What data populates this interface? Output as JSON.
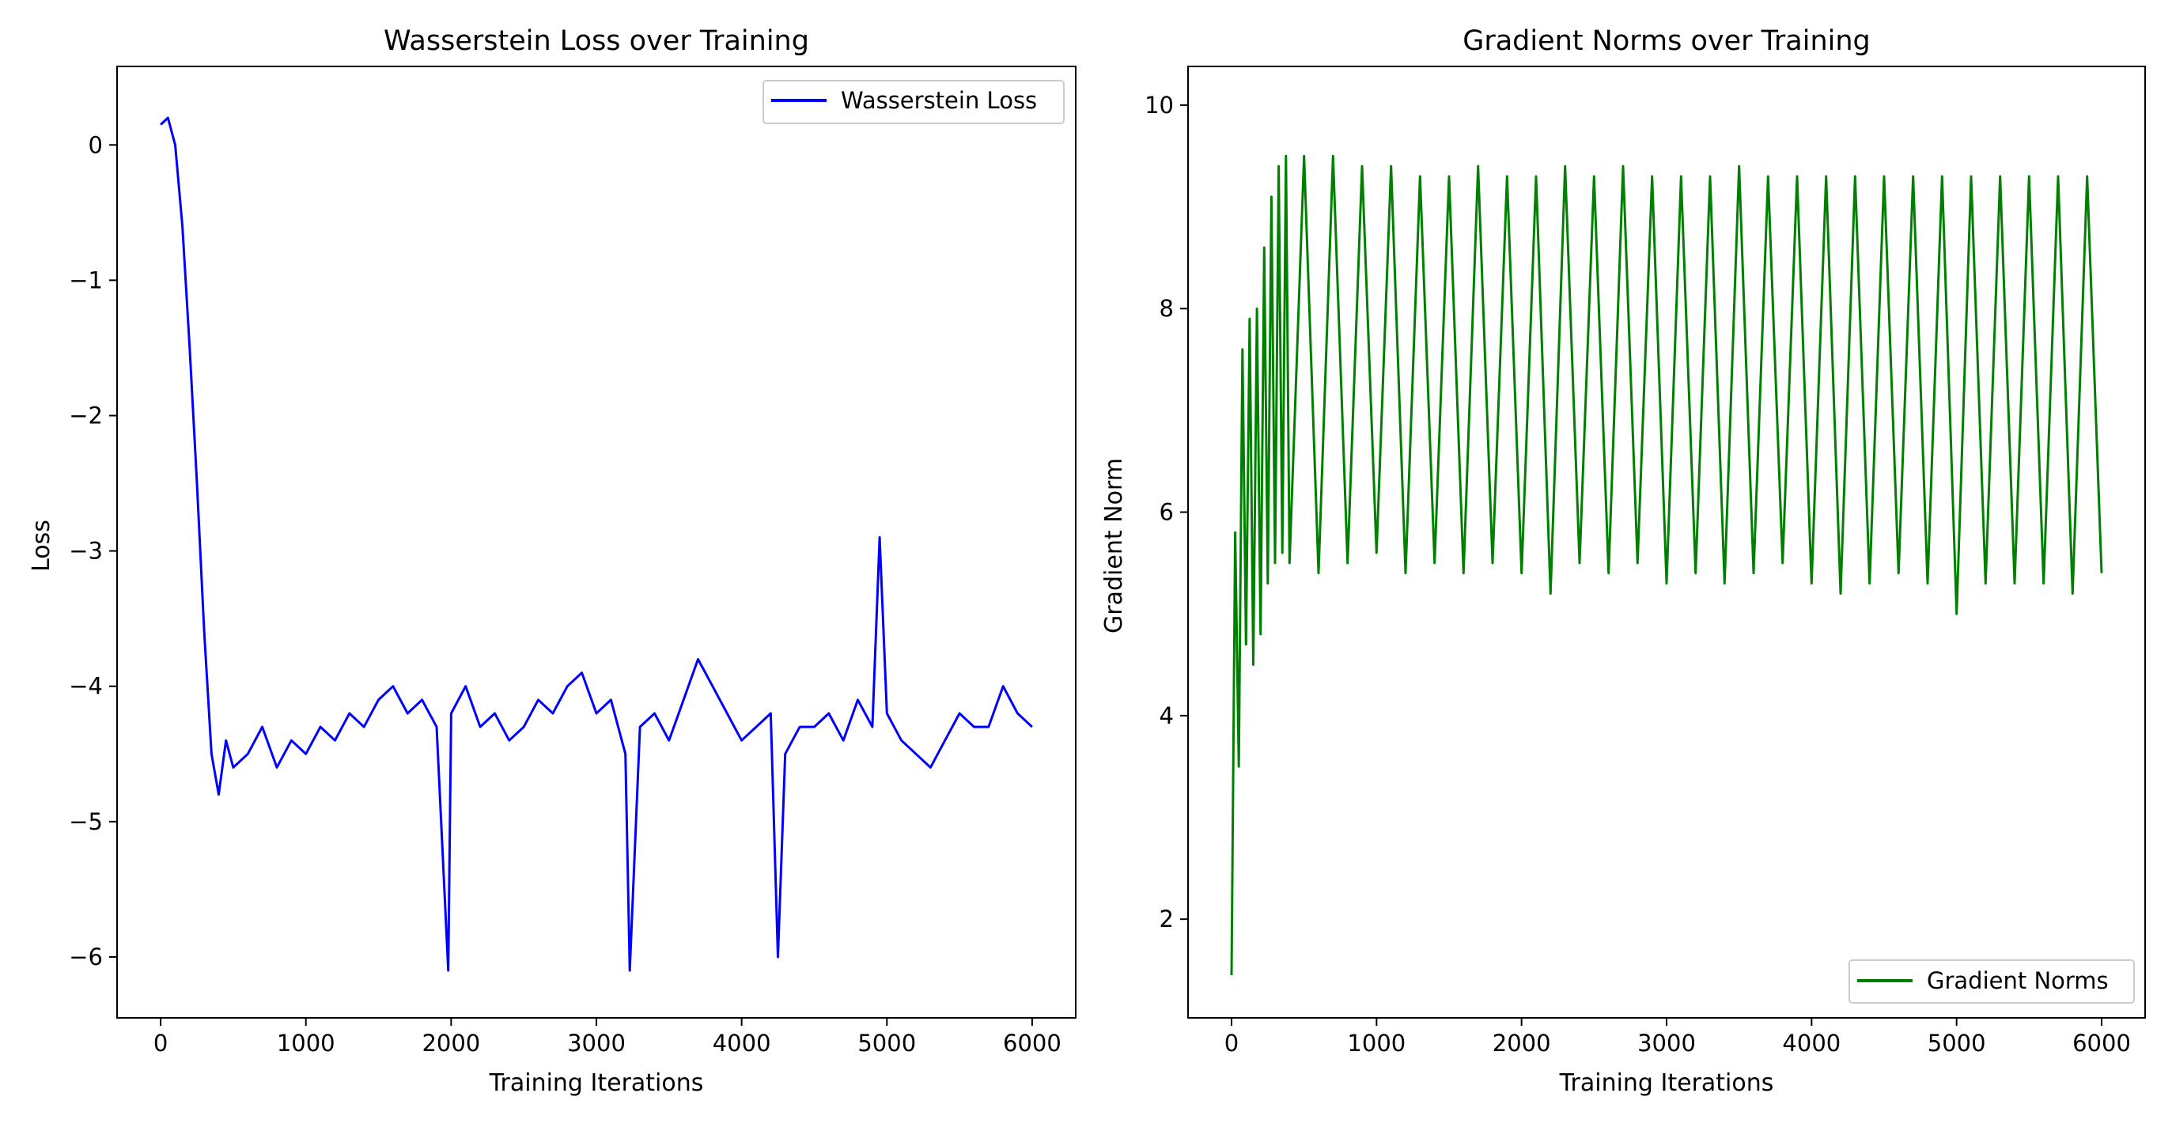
{
  "chart_data": [
    {
      "type": "line",
      "title": "Wasserstein Loss over Training",
      "xlabel": "Training Iterations",
      "ylabel": "Loss",
      "xlim": [
        -300,
        6300
      ],
      "ylim": [
        -6.45,
        0.58
      ],
      "xticks": [
        0,
        1000,
        2000,
        3000,
        4000,
        5000,
        6000
      ],
      "xtick_labels": [
        "0",
        "1000",
        "2000",
        "3000",
        "4000",
        "5000",
        "6000"
      ],
      "yticks": [
        0,
        -1,
        -2,
        -3,
        -4,
        -5,
        -6
      ],
      "ytick_labels": [
        "0",
        "−1",
        "−2",
        "−3",
        "−4",
        "−5",
        "−6"
      ],
      "grid": false,
      "legend_position": "upper right",
      "series": [
        {
          "name": "Wasserstein Loss",
          "color": "#0000ff",
          "x": [
            0,
            50,
            100,
            150,
            200,
            250,
            300,
            350,
            400,
            450,
            500,
            600,
            700,
            800,
            900,
            1000,
            1100,
            1200,
            1300,
            1400,
            1500,
            1600,
            1700,
            1800,
            1900,
            1980,
            2000,
            2100,
            2200,
            2300,
            2400,
            2500,
            2600,
            2700,
            2800,
            2900,
            3000,
            3100,
            3200,
            3230,
            3300,
            3400,
            3500,
            3600,
            3700,
            3800,
            3900,
            4000,
            4100,
            4200,
            4250,
            4300,
            4400,
            4500,
            4600,
            4700,
            4800,
            4900,
            4950,
            5000,
            5100,
            5200,
            5300,
            5400,
            5500,
            5600,
            5700,
            5800,
            5900,
            6000
          ],
          "values": [
            0.15,
            0.2,
            0.0,
            -0.6,
            -1.5,
            -2.5,
            -3.6,
            -4.5,
            -4.8,
            -4.4,
            -4.6,
            -4.5,
            -4.3,
            -4.6,
            -4.4,
            -4.5,
            -4.3,
            -4.4,
            -4.2,
            -4.3,
            -4.1,
            -4.0,
            -4.2,
            -4.1,
            -4.3,
            -6.1,
            -4.2,
            -4.0,
            -4.3,
            -4.2,
            -4.4,
            -4.3,
            -4.1,
            -4.2,
            -4.0,
            -3.9,
            -4.2,
            -4.1,
            -4.5,
            -6.1,
            -4.3,
            -4.2,
            -4.4,
            -4.1,
            -3.8,
            -4.0,
            -4.2,
            -4.4,
            -4.3,
            -4.2,
            -6.0,
            -4.5,
            -4.3,
            -4.3,
            -4.2,
            -4.4,
            -4.1,
            -4.3,
            -2.9,
            -4.2,
            -4.4,
            -4.5,
            -4.6,
            -4.4,
            -4.2,
            -4.3,
            -4.3,
            -4.0,
            -4.2,
            -4.3
          ]
        }
      ]
    },
    {
      "type": "line",
      "title": "Gradient Norms over Training",
      "xlabel": "Training Iterations",
      "ylabel": "Gradient Norm",
      "xlim": [
        -300,
        6300
      ],
      "ylim": [
        1.03,
        10.38
      ],
      "xticks": [
        0,
        1000,
        2000,
        3000,
        4000,
        5000,
        6000
      ],
      "xtick_labels": [
        "0",
        "1000",
        "2000",
        "3000",
        "4000",
        "5000",
        "6000"
      ],
      "yticks": [
        2,
        4,
        6,
        8,
        10
      ],
      "ytick_labels": [
        "2",
        "4",
        "6",
        "8",
        "10"
      ],
      "grid": false,
      "legend_position": "lower right",
      "series": [
        {
          "name": "Gradient Norms",
          "color": "#008000",
          "x": [
            0,
            25,
            50,
            75,
            100,
            125,
            150,
            175,
            200,
            225,
            250,
            275,
            300,
            325,
            350,
            375,
            400,
            500,
            600,
            700,
            800,
            900,
            1000,
            1100,
            1200,
            1300,
            1400,
            1500,
            1600,
            1700,
            1800,
            1900,
            2000,
            2100,
            2200,
            2300,
            2400,
            2500,
            2600,
            2700,
            2800,
            2900,
            3000,
            3100,
            3200,
            3300,
            3400,
            3500,
            3600,
            3700,
            3800,
            3900,
            4000,
            4100,
            4200,
            4300,
            4400,
            4500,
            4600,
            4700,
            4800,
            4900,
            5000,
            5100,
            5200,
            5300,
            5400,
            5500,
            5600,
            5700,
            5800,
            5900,
            6000
          ],
          "values": [
            1.45,
            5.8,
            3.5,
            7.6,
            4.7,
            7.9,
            4.5,
            8.0,
            4.8,
            8.6,
            5.3,
            9.1,
            5.5,
            9.4,
            5.6,
            9.5,
            5.5,
            9.5,
            5.4,
            9.5,
            5.5,
            9.4,
            5.6,
            9.4,
            5.4,
            9.3,
            5.5,
            9.3,
            5.4,
            9.4,
            5.5,
            9.3,
            5.4,
            9.3,
            5.2,
            9.4,
            5.5,
            9.3,
            5.4,
            9.4,
            5.5,
            9.3,
            5.3,
            9.3,
            5.4,
            9.3,
            5.3,
            9.4,
            5.4,
            9.3,
            5.5,
            9.3,
            5.3,
            9.3,
            5.2,
            9.3,
            5.3,
            9.3,
            5.4,
            9.3,
            5.3,
            9.3,
            5.0,
            9.3,
            5.3,
            9.3,
            5.3,
            9.3,
            5.3,
            9.3,
            5.2,
            9.3,
            5.4
          ]
        }
      ]
    }
  ]
}
